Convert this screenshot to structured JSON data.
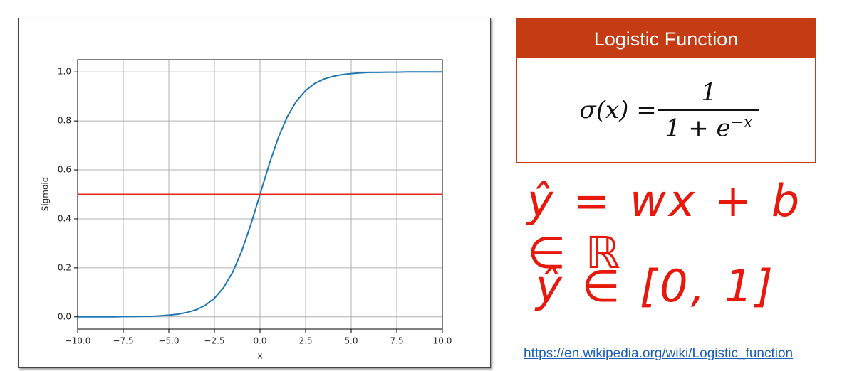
{
  "chart_data": {
    "type": "line",
    "xlabel": "x",
    "ylabel": "Sigmoid",
    "xlim": [
      -10,
      10
    ],
    "ylim": [
      -0.05,
      1.05
    ],
    "xticks": [
      {
        "value": -10,
        "label": "−10.0"
      },
      {
        "value": -7.5,
        "label": "−7.5"
      },
      {
        "value": -5,
        "label": "−5.0"
      },
      {
        "value": -2.5,
        "label": "−2.5"
      },
      {
        "value": 0,
        "label": "0.0"
      },
      {
        "value": 2.5,
        "label": "2.5"
      },
      {
        "value": 5,
        "label": "5.0"
      },
      {
        "value": 7.5,
        "label": "7.5"
      },
      {
        "value": 10,
        "label": "10.0"
      }
    ],
    "yticks": [
      {
        "value": 0,
        "label": "0.0"
      },
      {
        "value": 0.2,
        "label": "0.2"
      },
      {
        "value": 0.4,
        "label": "0.4"
      },
      {
        "value": 0.6,
        "label": "0.6"
      },
      {
        "value": 0.8,
        "label": "0.8"
      },
      {
        "value": 1,
        "label": "1.0"
      }
    ],
    "grid": true,
    "series": [
      {
        "color": "#1f77b4",
        "x": [
          -10,
          -9.5,
          -9,
          -8.5,
          -8,
          -7.5,
          -7,
          -6.5,
          -6,
          -5.5,
          -5,
          -4.5,
          -4,
          -3.5,
          -3,
          -2.5,
          -2,
          -1.5,
          -1,
          -0.5,
          0,
          0.5,
          1,
          1.5,
          2,
          2.5,
          3,
          3.5,
          4,
          4.5,
          5,
          5.5,
          6,
          6.5,
          7,
          7.5,
          8,
          8.5,
          9,
          9.5,
          10
        ],
        "values": [
          0,
          0,
          0,
          0,
          0,
          0.001,
          0.001,
          0.002,
          0.002,
          0.004,
          0.007,
          0.011,
          0.018,
          0.029,
          0.047,
          0.076,
          0.119,
          0.182,
          0.269,
          0.378,
          0.5,
          0.622,
          0.731,
          0.818,
          0.881,
          0.924,
          0.953,
          0.971,
          0.982,
          0.989,
          0.993,
          0.996,
          0.998,
          0.998,
          0.999,
          0.999,
          1,
          1,
          1,
          1,
          1
        ]
      },
      {
        "color": "#e8251a",
        "x": [
          -10,
          10
        ],
        "values": [
          0.5,
          0.5
        ]
      }
    ]
  },
  "formula_box": {
    "title": "Logistic Function",
    "lhs": "σ(x) =",
    "numerator": "1",
    "denominator": "1 + e",
    "exponent": "−x"
  },
  "handwriting": {
    "line1": "ŷ = wx + b ∈ ℝ",
    "line2": "ŷ ∈ [0, 1]"
  },
  "link": "https://en.wikipedia.org/wiki/Logistic_function"
}
